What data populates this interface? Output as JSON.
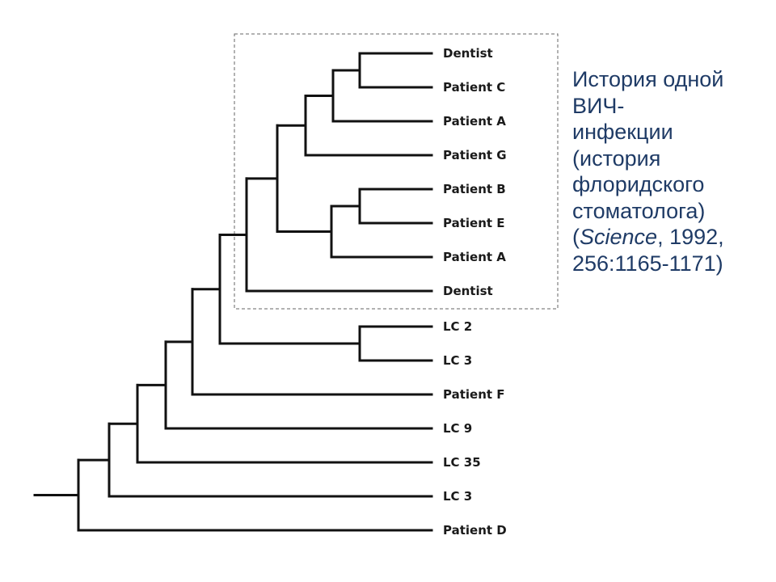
{
  "tree": {
    "leaves": [
      "Dentist",
      "Patient C",
      "Patient A",
      "Patient G",
      "Patient B",
      "Patient E",
      "Patient A",
      "Dentist",
      "LC 2",
      "LC 3",
      "Patient F",
      "LC 9",
      "LC 35",
      "LC 3",
      "Patient D"
    ]
  },
  "caption": {
    "line1": "История одной",
    "line2": "ВИЧ-",
    "line3": "инфекции",
    "line4": "(история",
    "line5": "флоридского",
    "line6": "стоматолога)",
    "line7_open": "(",
    "line7_italic": "Science",
    "line7_rest": ", 1992,",
    "line8": "256:1165-1171)"
  },
  "colors": {
    "caption_text": "#1f3b66",
    "branch": "#111111",
    "box": "#666666"
  }
}
